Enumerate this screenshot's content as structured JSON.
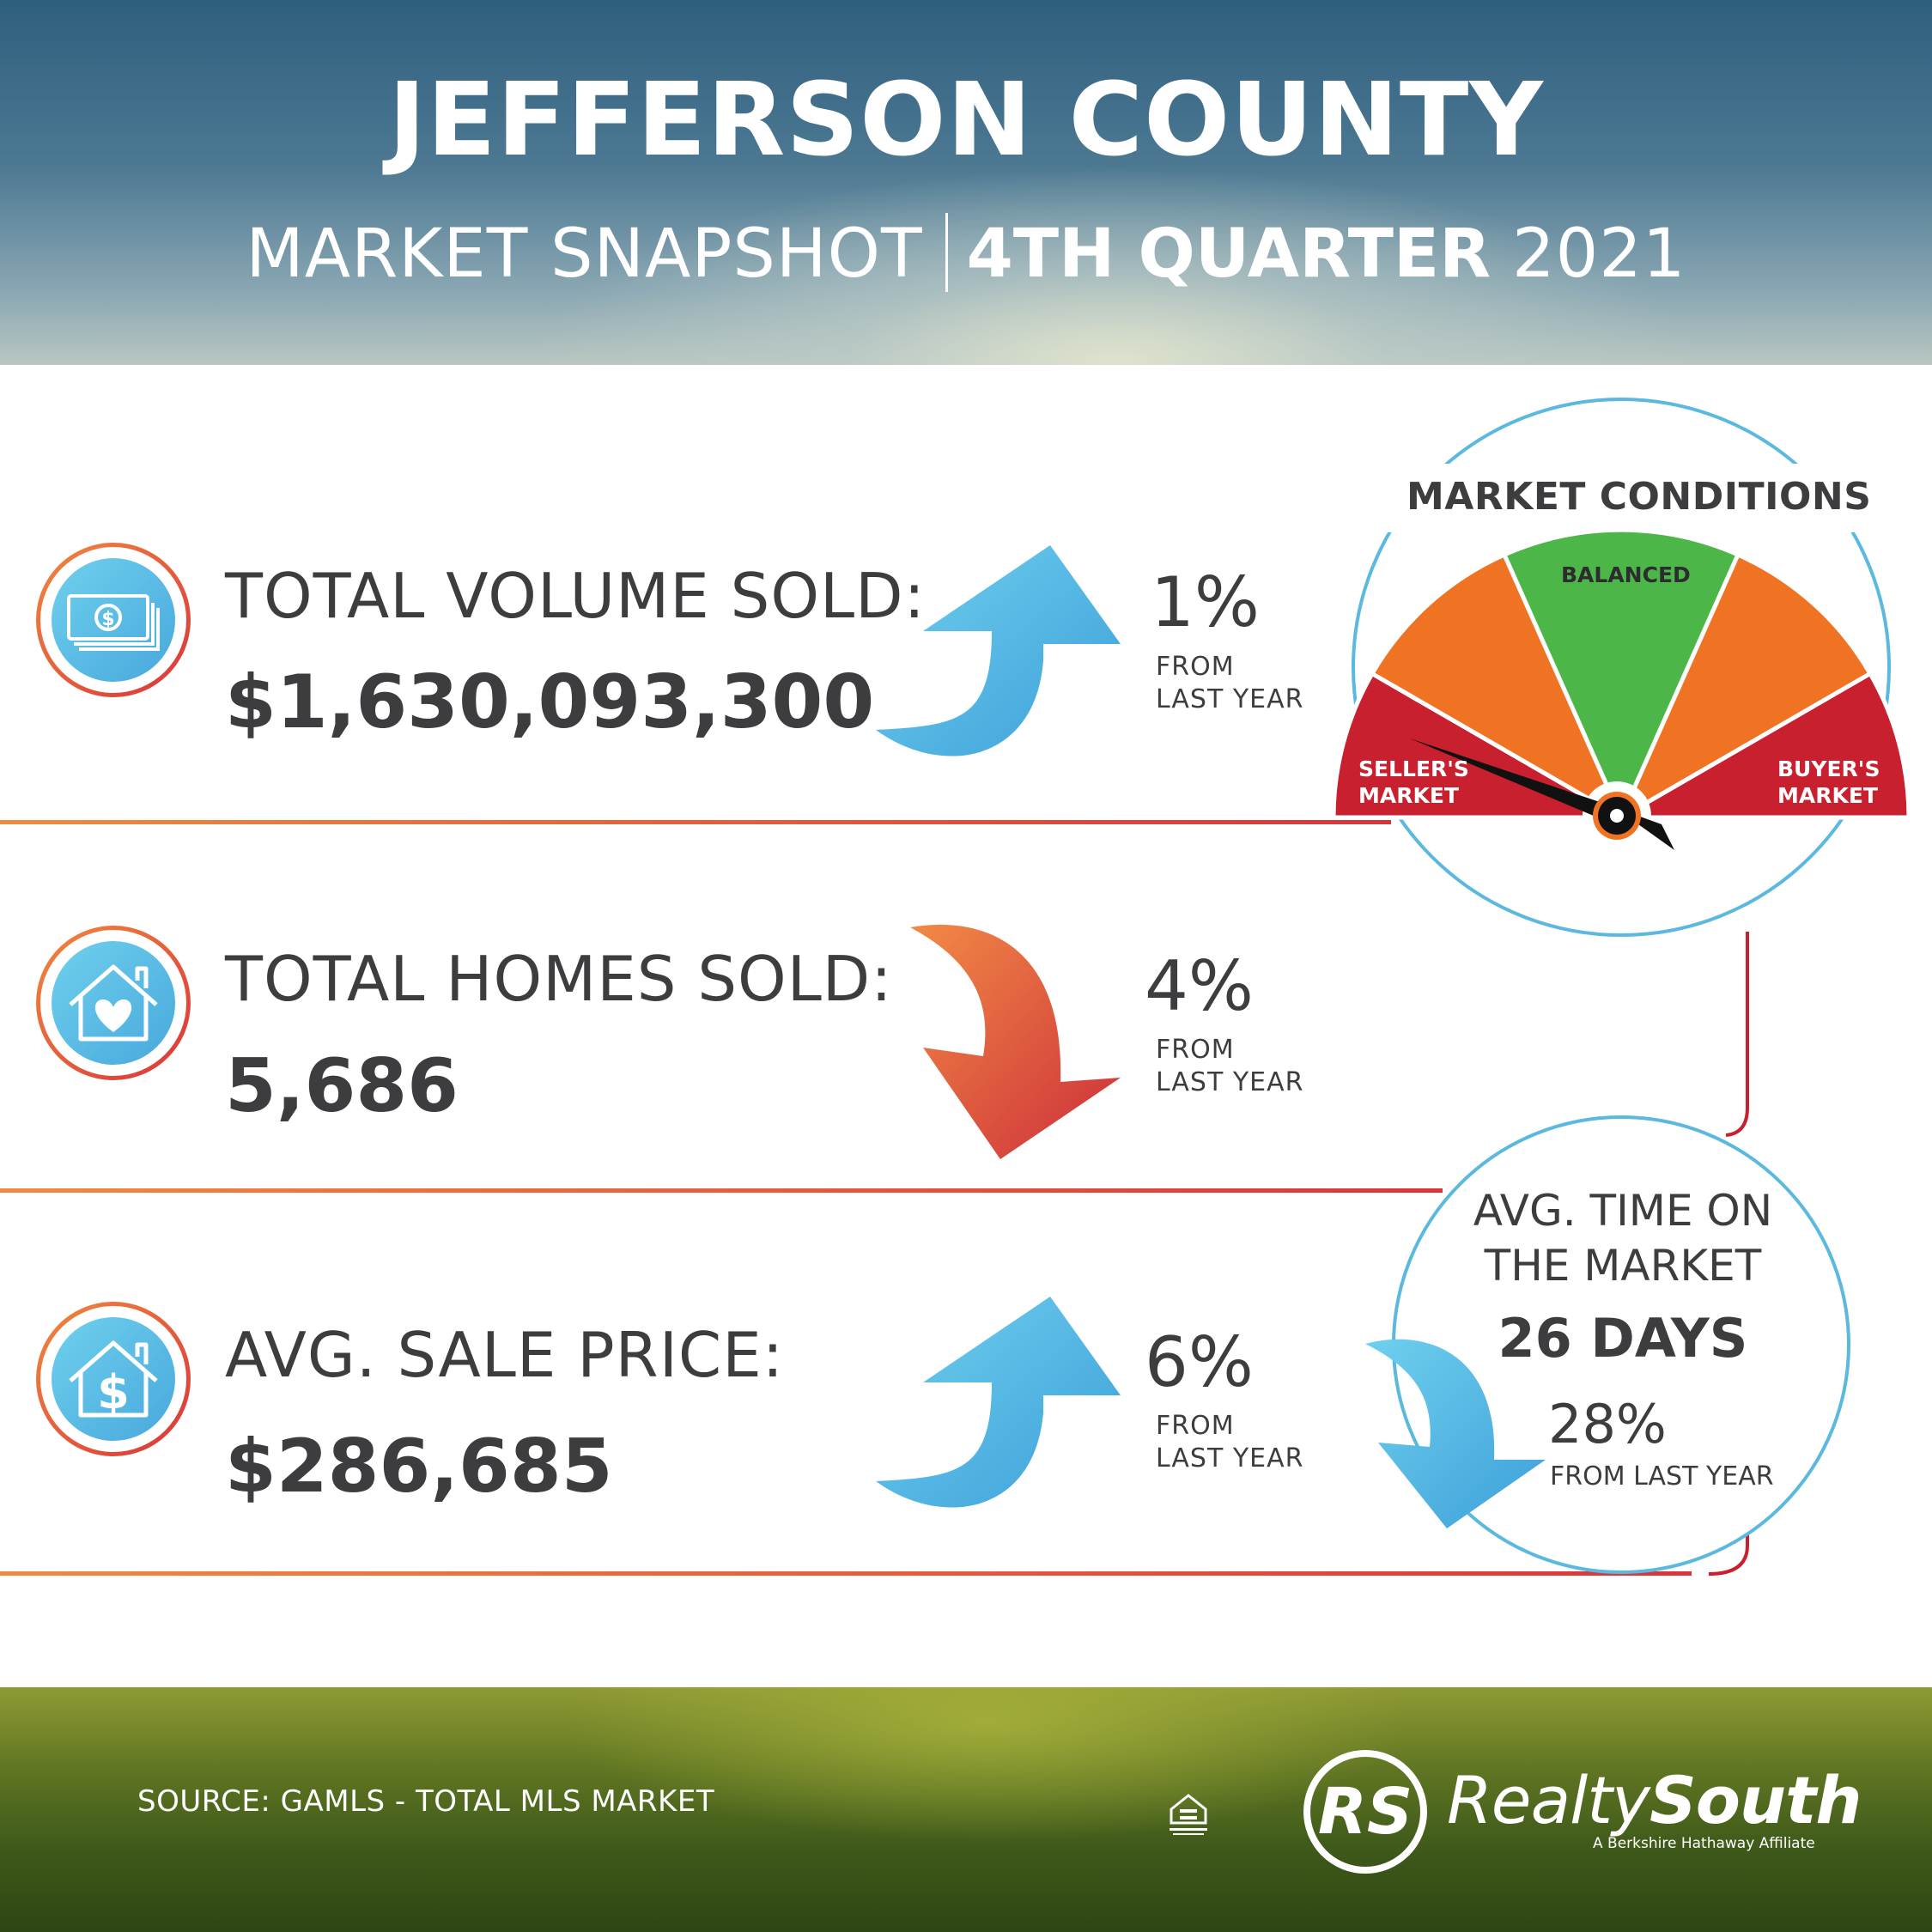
{
  "header": {
    "title": "JEFFERSON COUNTY",
    "subtitle_left": "MARKET SNAPSHOT",
    "subtitle_bold": "4TH QUARTER",
    "subtitle_year": "2021"
  },
  "metrics": [
    {
      "label": "TOTAL VOLUME SOLD:",
      "value": "$1,630,093,300",
      "change": "1%",
      "change_line1": "FROM",
      "change_line2": "LAST YEAR",
      "direction": "up",
      "icon": "money-icon"
    },
    {
      "label": "TOTAL HOMES SOLD:",
      "value": "5,686",
      "change": "4%",
      "change_line1": "FROM",
      "change_line2": "LAST YEAR",
      "direction": "down",
      "icon": "house-heart-icon"
    },
    {
      "label": "AVG. SALE PRICE:",
      "value": "$286,685",
      "change": "6%",
      "change_line1": "FROM",
      "change_line2": "LAST YEAR",
      "direction": "up",
      "icon": "house-dollar-icon"
    }
  ],
  "market_conditions": {
    "title": "MARKET CONDITIONS",
    "balanced": "BALANCED",
    "seller_line1": "SELLER'S",
    "seller_line2": "MARKET",
    "buyer_line1": "BUYER'S",
    "buyer_line2": "MARKET",
    "indicator": "seller's market"
  },
  "days_on_market": {
    "label_line1": "AVG. TIME ON",
    "label_line2": "THE MARKET",
    "value": "26 DAYS",
    "change": "28%",
    "change_sub": "FROM LAST YEAR",
    "direction": "down"
  },
  "footer": {
    "source": "SOURCE: GAMLS - TOTAL MLS MARKET",
    "logo_light": "Realty",
    "logo_bold": "South",
    "logo_tag": "A Berkshire Hathaway Affiliate",
    "logo_mark": "RS",
    "equal_housing_icon": "equal-housing-icon"
  },
  "colors": {
    "blue": "#4fb3e0",
    "orange": "#f07324",
    "red": "#c8202f",
    "green": "#4cb748",
    "text": "#3d3d3f"
  }
}
